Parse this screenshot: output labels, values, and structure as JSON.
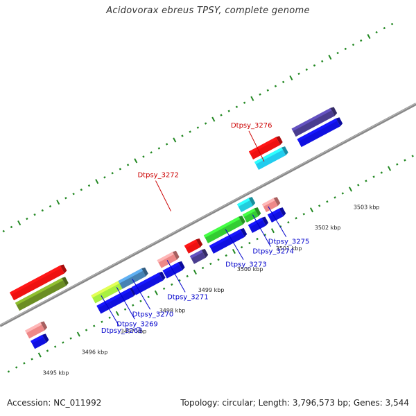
{
  "title": "Acidovorax ebreus TPSY, complete genome",
  "footer": {
    "accession": "Accession: NC_011992",
    "summary": "Topology: circular; Length: 3,796,573 bp; Genes: 3,544"
  },
  "backbone": {
    "color": "#888888"
  },
  "scale_labels": [
    {
      "label": "3495 kbp",
      "kbp": 3495
    },
    {
      "label": "3496 kbp",
      "kbp": 3496
    },
    {
      "label": "3497 kbp",
      "kbp": 3497
    },
    {
      "label": "3498 kbp",
      "kbp": 3498
    },
    {
      "label": "3499 kbp",
      "kbp": 3499
    },
    {
      "label": "3500 kbp",
      "kbp": 3500
    },
    {
      "label": "3501 kbp",
      "kbp": 3501
    },
    {
      "label": "3502 kbp",
      "kbp": 3502
    },
    {
      "label": "3503 kbp",
      "kbp": 3503
    }
  ],
  "colors": {
    "blue": "#1010e0",
    "navy": "#4a3d8f",
    "red": "#ee1111",
    "pink": "#ee8888",
    "olive": "#6b8e23",
    "lime": "#a8f040",
    "steel": "#4682b4",
    "green": "#33cc33",
    "cyan": "#22ccdd",
    "skyblue": "#22ccee",
    "label_red": "#cc0000",
    "label_blue": "#0000cc",
    "tick_green": "#228822"
  },
  "features": [
    {
      "id": "f1",
      "lane": -3,
      "start": 3494.9,
      "end": 3495.2,
      "color": "blue"
    },
    {
      "id": "f2",
      "lane": -2,
      "start": 3494.9,
      "end": 3495.3,
      "color": "pink"
    },
    {
      "id": "f3",
      "lane": 1,
      "start": 3495.0,
      "end": 3496.2,
      "color": "olive"
    },
    {
      "id": "f4",
      "lane": 2,
      "start": 3495.0,
      "end": 3496.3,
      "color": "red"
    },
    {
      "id": "f5",
      "lane": -3,
      "start": 3496.6,
      "end": 3496.9,
      "color": "blue"
    },
    {
      "id": "f6",
      "lane": -3,
      "start": 3496.9,
      "end": 3497.45,
      "color": "blue"
    },
    {
      "id": "f7",
      "lane": -3,
      "start": 3497.5,
      "end": 3498.2,
      "color": "blue"
    },
    {
      "id": "f8",
      "lane": -2,
      "start": 3496.6,
      "end": 3497.3,
      "color": "lime"
    },
    {
      "id": "f9",
      "lane": -2,
      "start": 3497.3,
      "end": 3497.9,
      "color": "steel"
    },
    {
      "id": "f10",
      "lane": -3,
      "start": 3498.3,
      "end": 3498.7,
      "color": "blue"
    },
    {
      "id": "f11",
      "lane": -2,
      "start": 3498.3,
      "end": 3498.7,
      "color": "pink"
    },
    {
      "id": "f12",
      "lane": -3,
      "start": 3499.0,
      "end": 3499.3,
      "color": "navy"
    },
    {
      "id": "f13",
      "lane": -2,
      "start": 3499.0,
      "end": 3499.3,
      "color": "red"
    },
    {
      "id": "f14",
      "lane": -3,
      "start": 3499.5,
      "end": 3500.3,
      "color": "blue"
    },
    {
      "id": "f15",
      "lane": -2,
      "start": 3499.5,
      "end": 3500.4,
      "color": "green"
    },
    {
      "id": "f16",
      "lane": -3,
      "start": 3500.5,
      "end": 3500.85,
      "color": "blue"
    },
    {
      "id": "f17",
      "lane": -2,
      "start": 3500.5,
      "end": 3500.8,
      "color": "green"
    },
    {
      "id": "f18",
      "lane": -1,
      "start": 3500.5,
      "end": 3500.8,
      "color": "cyan"
    },
    {
      "id": "f19",
      "lane": -3,
      "start": 3501.0,
      "end": 3501.3,
      "color": "blue"
    },
    {
      "id": "f20",
      "lane": -2,
      "start": 3501.0,
      "end": 3501.3,
      "color": "pink"
    },
    {
      "id": "f21",
      "lane": 2,
      "start": 3501.3,
      "end": 3502.0,
      "color": "skyblue"
    },
    {
      "id": "f22",
      "lane": 3,
      "start": 3501.3,
      "end": 3502.0,
      "color": "red"
    },
    {
      "id": "f23",
      "lane": 2,
      "start": 3502.4,
      "end": 3503.4,
      "color": "blue"
    },
    {
      "id": "f24",
      "lane": 3,
      "start": 3502.4,
      "end": 3503.4,
      "color": "navy"
    }
  ],
  "labels": [
    {
      "text": "Dtpsy_3276",
      "color": "label_red",
      "kbp": 3501.5
    },
    {
      "text": "Dtpsy_3272",
      "color": "label_red",
      "kbp": 3499.1
    },
    {
      "text": "Dtpsy_3275",
      "color": "label_blue",
      "kbp": 3501.1
    },
    {
      "text": "Dtpsy_3274",
      "color": "label_blue",
      "kbp": 3500.7
    },
    {
      "text": "Dtpsy_3273",
      "color": "label_blue",
      "kbp": 3500.0
    },
    {
      "text": "Dtpsy_3271",
      "color": "label_blue",
      "kbp": 3498.5
    },
    {
      "text": "Dtpsy_3270",
      "color": "label_blue",
      "kbp": 3497.6
    },
    {
      "text": "Dtpsy_3269",
      "color": "label_blue",
      "kbp": 3497.2
    },
    {
      "text": "Dtpsy_3268",
      "color": "label_blue",
      "kbp": 3496.8
    }
  ]
}
